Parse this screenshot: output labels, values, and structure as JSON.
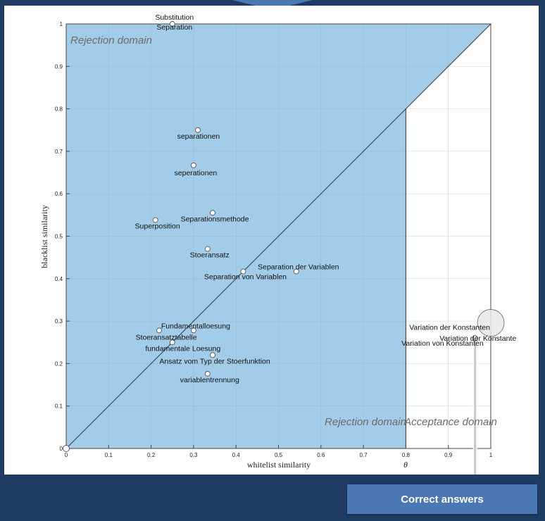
{
  "chart_data": {
    "type": "scatter",
    "xlabel": "whitelist similarity",
    "ylabel": "blacklist similarity",
    "xlim": [
      0,
      1
    ],
    "ylim": [
      0,
      1
    ],
    "x_ticks": [
      "0",
      "0.1",
      "0.2",
      "0.3",
      "0.4",
      "0.5",
      "0.6",
      "0.7",
      "0.8",
      "0.9",
      "1"
    ],
    "y_ticks": [
      "0",
      "0.1",
      "0.2",
      "0.3",
      "0.4",
      "0.5",
      "0.6",
      "0.7",
      "0.8",
      "0.9",
      "1"
    ],
    "grid": true,
    "threshold": {
      "label": "θ",
      "value": 0.8
    },
    "region_labels": {
      "upper_rejection": "Rejection domain",
      "lower_rejection": "Rejection domain",
      "acceptance": "Acceptance domain"
    },
    "region_color": "#a3cce8",
    "points": [
      {
        "label": "Substitution",
        "x": 0.25,
        "y": 1.0
      },
      {
        "label": "Separation",
        "x": 0.25,
        "y": 1.0
      },
      {
        "label": "separationen",
        "x": 0.31,
        "y": 0.75
      },
      {
        "label": "seperationen",
        "x": 0.3,
        "y": 0.667
      },
      {
        "label": "Separationsmethode",
        "x": 0.345,
        "y": 0.555
      },
      {
        "label": "Superposition",
        "x": 0.21,
        "y": 0.538
      },
      {
        "label": "Stoeransatz",
        "x": 0.333,
        "y": 0.47
      },
      {
        "label": "Separation der Variablen",
        "x": 0.542,
        "y": 0.417
      },
      {
        "label": "Separation von Variablen",
        "x": 0.417,
        "y": 0.417
      },
      {
        "label": "Fundamentalloesung",
        "x": 0.3,
        "y": 0.278
      },
      {
        "label": "Stoeransatztabelle",
        "x": 0.219,
        "y": 0.278
      },
      {
        "label": "fundamentale Loesung",
        "x": 0.25,
        "y": 0.25
      },
      {
        "label": "Ansatz vom Typ der Stoerfunktion",
        "x": 0.345,
        "y": 0.22
      },
      {
        "label": "variablentrennung",
        "x": 0.333,
        "y": 0.176
      },
      {
        "label": "Variation der Konstanten",
        "x": 1.0,
        "y": 0.296,
        "size": "large"
      },
      {
        "label": "Variation der Konstante",
        "x": 0.963,
        "y": 0.26
      },
      {
        "label": "Variation von Konstanten",
        "x": 0.963,
        "y": 0.26
      },
      {
        "label": "",
        "x": 0.0,
        "y": 0.0
      }
    ]
  },
  "callout": {
    "label": "Correct answers"
  }
}
